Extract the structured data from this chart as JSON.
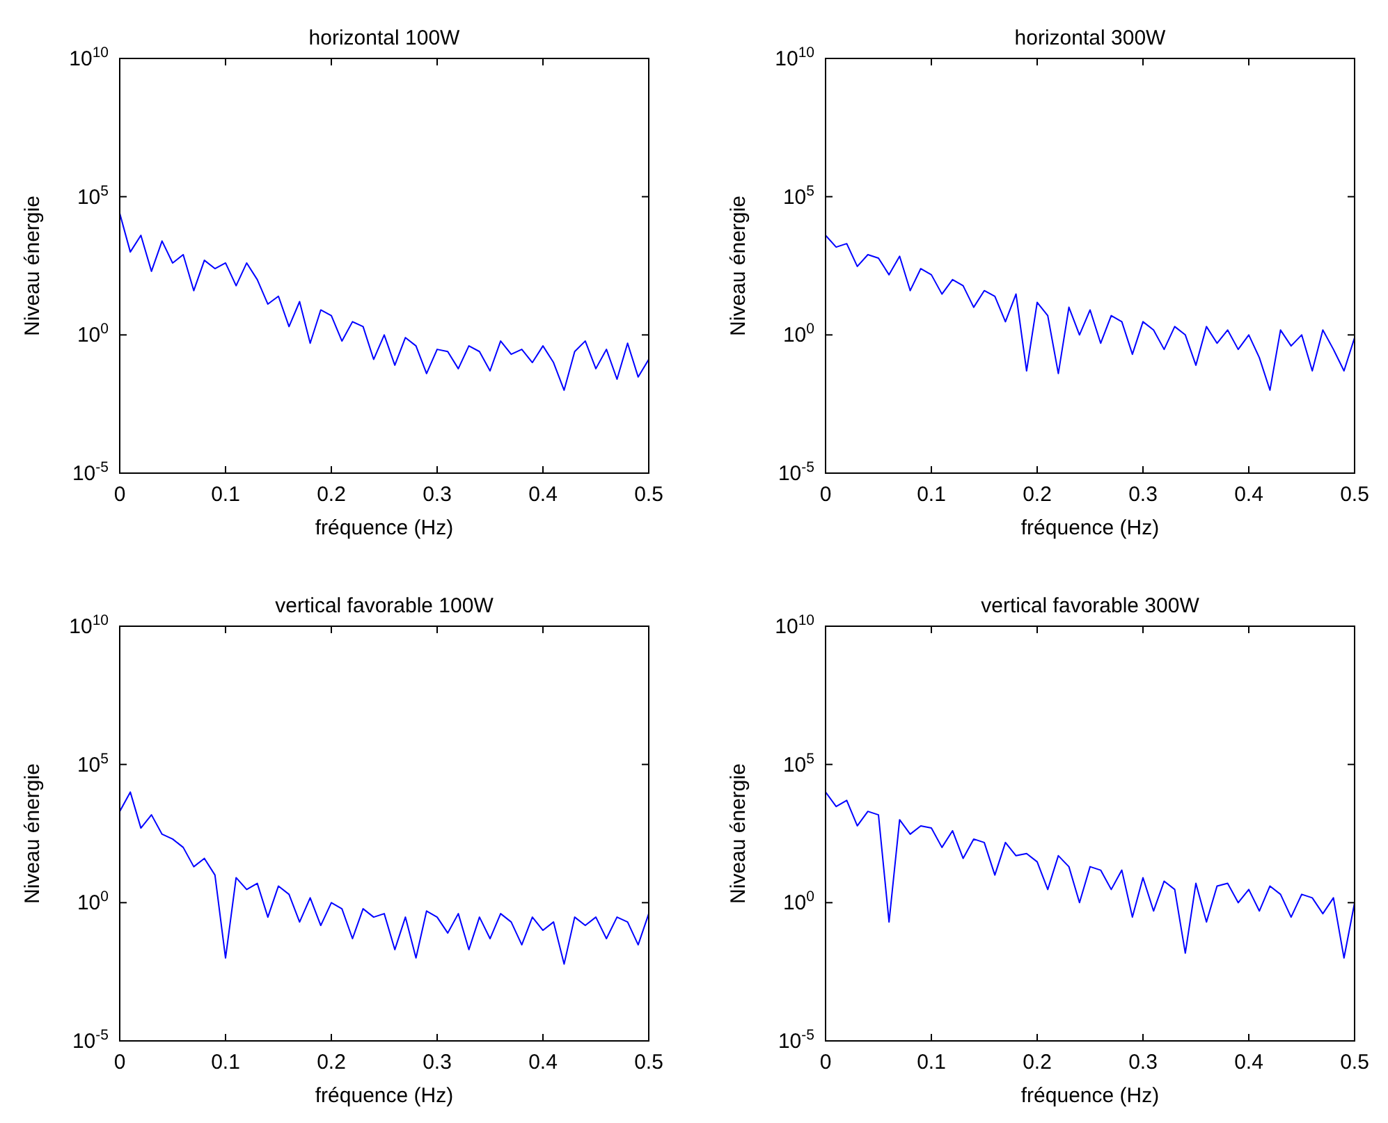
{
  "chart_data": [
    {
      "type": "line",
      "title": "horizontal 100W",
      "xlabel": "fréquence (Hz)",
      "ylabel": "Niveau énergie",
      "log": "y",
      "grid": false,
      "xlim": [
        0,
        0.5
      ],
      "xticks": [
        0,
        0.1,
        0.2,
        0.3,
        0.4,
        0.5
      ],
      "ylim": [
        1e-05,
        10000000000
      ],
      "yticks": [
        {
          "value": 1e-05,
          "label": "10$^{-5}$"
        },
        {
          "value": 1,
          "label": "10$^{0}$"
        },
        {
          "value": 100000,
          "label": "10$^{5}$"
        },
        {
          "value": 10000000000,
          "label": "10$^{10}$"
        }
      ],
      "x": [
        0,
        0.01,
        0.02,
        0.03,
        0.04,
        0.05,
        0.06,
        0.07,
        0.08,
        0.09,
        0.1,
        0.11,
        0.12,
        0.13,
        0.14,
        0.15,
        0.16,
        0.17,
        0.18,
        0.19,
        0.2,
        0.21,
        0.22,
        0.23,
        0.24,
        0.25,
        0.26,
        0.27,
        0.28,
        0.29,
        0.3,
        0.31,
        0.32,
        0.33,
        0.34,
        0.35,
        0.36,
        0.37,
        0.38,
        0.39,
        0.4,
        0.41,
        0.42,
        0.43,
        0.44,
        0.45,
        0.46,
        0.47,
        0.48,
        0.49,
        0.5
      ],
      "series": [
        {
          "color": "#0000ff",
          "values": [
            25000,
            1000,
            4000,
            200,
            2500,
            400,
            800,
            40,
            500,
            250,
            400,
            60,
            400,
            100,
            13,
            25,
            2,
            16,
            0.5,
            8,
            5,
            0.6,
            3,
            2,
            0.13,
            1,
            0.08,
            0.8,
            0.4,
            0.04,
            0.3,
            0.25,
            0.06,
            0.4,
            0.25,
            0.05,
            0.6,
            0.2,
            0.3,
            0.1,
            0.4,
            0.1,
            0.01,
            0.25,
            0.6,
            0.06,
            0.3,
            0.025,
            0.5,
            0.03,
            0.13
          ]
        }
      ]
    },
    {
      "type": "line",
      "title": "horizontal 300W",
      "xlabel": "fréquence (Hz)",
      "ylabel": "Niveau énergie",
      "log": "y",
      "grid": false,
      "xlim": [
        0,
        0.5
      ],
      "xticks": [
        0,
        0.1,
        0.2,
        0.3,
        0.4,
        0.5
      ],
      "ylim": [
        1e-05,
        10000000000
      ],
      "yticks": [
        {
          "value": 1e-05,
          "label": "10$^{-5}$"
        },
        {
          "value": 1,
          "label": "10$^{0}$"
        },
        {
          "value": 100000,
          "label": "10$^{5}$"
        },
        {
          "value": 10000000000,
          "label": "10$^{10}$"
        }
      ],
      "x": [
        0,
        0.01,
        0.02,
        0.03,
        0.04,
        0.05,
        0.06,
        0.07,
        0.08,
        0.09,
        0.1,
        0.11,
        0.12,
        0.13,
        0.14,
        0.15,
        0.16,
        0.17,
        0.18,
        0.19,
        0.2,
        0.21,
        0.22,
        0.23,
        0.24,
        0.25,
        0.26,
        0.27,
        0.28,
        0.29,
        0.3,
        0.31,
        0.32,
        0.33,
        0.34,
        0.35,
        0.36,
        0.37,
        0.38,
        0.39,
        0.4,
        0.41,
        0.42,
        0.43,
        0.44,
        0.45,
        0.46,
        0.47,
        0.48,
        0.49,
        0.5
      ],
      "series": [
        {
          "color": "#0000ff",
          "values": [
            4000,
            1500,
            2000,
            300,
            800,
            600,
            150,
            700,
            40,
            250,
            150,
            30,
            100,
            60,
            10,
            40,
            25,
            3,
            30,
            0.05,
            15,
            5,
            0.04,
            10,
            1,
            8,
            0.5,
            5,
            3,
            0.2,
            3,
            1.5,
            0.3,
            2,
            1,
            0.08,
            2,
            0.5,
            1.5,
            0.3,
            1,
            0.15,
            0.01,
            1.5,
            0.4,
            1,
            0.05,
            1.5,
            0.3,
            0.05,
            0.8
          ]
        }
      ]
    },
    {
      "type": "line",
      "title": "vertical favorable 100W",
      "xlabel": "fréquence (Hz)",
      "ylabel": "Niveau énergie",
      "log": "y",
      "grid": false,
      "xlim": [
        0,
        0.5
      ],
      "xticks": [
        0,
        0.1,
        0.2,
        0.3,
        0.4,
        0.5
      ],
      "ylim": [
        1e-05,
        10000000000
      ],
      "yticks": [
        {
          "value": 1e-05,
          "label": "10$^{-5}$"
        },
        {
          "value": 1,
          "label": "10$^{0}$"
        },
        {
          "value": 100000,
          "label": "10$^{5}$"
        },
        {
          "value": 10000000000,
          "label": "10$^{10}$"
        }
      ],
      "x": [
        0,
        0.01,
        0.02,
        0.03,
        0.04,
        0.05,
        0.06,
        0.07,
        0.08,
        0.09,
        0.1,
        0.11,
        0.12,
        0.13,
        0.14,
        0.15,
        0.16,
        0.17,
        0.18,
        0.19,
        0.2,
        0.21,
        0.22,
        0.23,
        0.24,
        0.25,
        0.26,
        0.27,
        0.28,
        0.29,
        0.3,
        0.31,
        0.32,
        0.33,
        0.34,
        0.35,
        0.36,
        0.37,
        0.38,
        0.39,
        0.4,
        0.41,
        0.42,
        0.43,
        0.44,
        0.45,
        0.46,
        0.47,
        0.48,
        0.49,
        0.5
      ],
      "series": [
        {
          "color": "#0000ff",
          "values": [
            2000,
            10000,
            500,
            1500,
            300,
            200,
            100,
            20,
            40,
            10,
            0.01,
            8,
            3,
            5,
            0.3,
            4,
            2,
            0.2,
            1.5,
            0.15,
            1,
            0.6,
            0.05,
            0.6,
            0.3,
            0.4,
            0.02,
            0.3,
            0.01,
            0.5,
            0.3,
            0.08,
            0.4,
            0.02,
            0.3,
            0.05,
            0.4,
            0.2,
            0.03,
            0.3,
            0.1,
            0.2,
            0.006,
            0.3,
            0.15,
            0.3,
            0.05,
            0.3,
            0.2,
            0.03,
            0.4
          ]
        }
      ]
    },
    {
      "type": "line",
      "title": "vertical favorable 300W",
      "xlabel": "fréquence (Hz)",
      "ylabel": "Niveau énergie",
      "log": "y",
      "grid": false,
      "xlim": [
        0,
        0.5
      ],
      "xticks": [
        0,
        0.1,
        0.2,
        0.3,
        0.4,
        0.5
      ],
      "ylim": [
        1e-05,
        10000000000
      ],
      "yticks": [
        {
          "value": 1e-05,
          "label": "10$^{-5}$"
        },
        {
          "value": 1,
          "label": "10$^{0}$"
        },
        {
          "value": 100000,
          "label": "10$^{5}$"
        },
        {
          "value": 10000000000,
          "label": "10$^{10}$"
        }
      ],
      "x": [
        0,
        0.01,
        0.02,
        0.03,
        0.04,
        0.05,
        0.06,
        0.07,
        0.08,
        0.09,
        0.1,
        0.11,
        0.12,
        0.13,
        0.14,
        0.15,
        0.16,
        0.17,
        0.18,
        0.19,
        0.2,
        0.21,
        0.22,
        0.23,
        0.24,
        0.25,
        0.26,
        0.27,
        0.28,
        0.29,
        0.3,
        0.31,
        0.32,
        0.33,
        0.34,
        0.35,
        0.36,
        0.37,
        0.38,
        0.39,
        0.4,
        0.41,
        0.42,
        0.43,
        0.44,
        0.45,
        0.46,
        0.47,
        0.48,
        0.49,
        0.5
      ],
      "series": [
        {
          "color": "#0000ff",
          "values": [
            10000,
            3000,
            5000,
            600,
            2000,
            1500,
            0.2,
            1000,
            300,
            600,
            500,
            100,
            400,
            40,
            200,
            150,
            10,
            150,
            50,
            60,
            30,
            3,
            50,
            20,
            1,
            20,
            15,
            3,
            15,
            0.3,
            8,
            0.5,
            6,
            3,
            0.015,
            5,
            0.2,
            4,
            5,
            1,
            3,
            0.5,
            4,
            2,
            0.3,
            2,
            1.5,
            0.4,
            1.5,
            0.01,
            1
          ]
        }
      ]
    }
  ]
}
